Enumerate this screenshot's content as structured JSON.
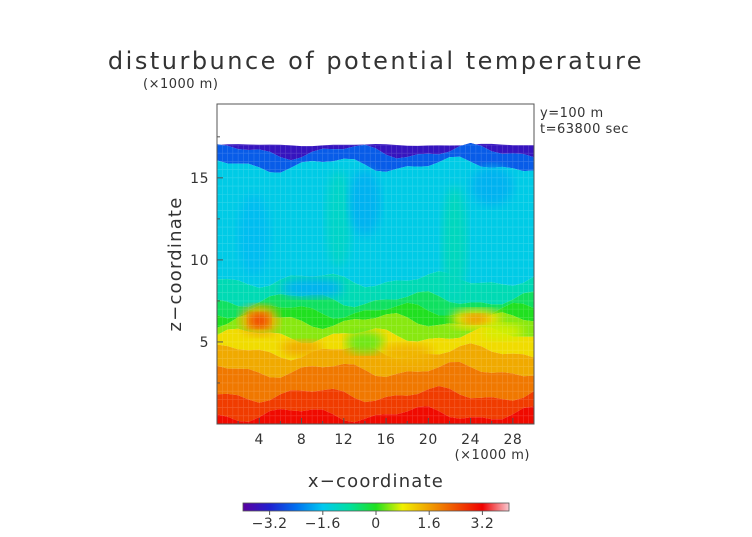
{
  "chart_data": {
    "type": "heatmap",
    "title": "disturbunce of potential temperature",
    "y_unit_label": "(×1000 m)",
    "x_unit_label": "(×1000 m)",
    "xlabel": "x−coordinate",
    "ylabel": "z−coordinate",
    "info_lines": [
      "y=100  m",
      "t=63800  sec"
    ],
    "xlim": [
      0,
      30
    ],
    "ylim": [
      0,
      19.5
    ],
    "x_ticks": [
      {
        "value": 4,
        "label": "4"
      },
      {
        "value": 8,
        "label": "8"
      },
      {
        "value": 12,
        "label": "12"
      },
      {
        "value": 16,
        "label": "16"
      },
      {
        "value": 20,
        "label": "20"
      },
      {
        "value": 24,
        "label": "24"
      },
      {
        "value": 28,
        "label": "28"
      }
    ],
    "y_ticks": [
      {
        "value": 5,
        "label": "5"
      },
      {
        "value": 10,
        "label": "10"
      },
      {
        "value": 15,
        "label": "15"
      }
    ],
    "colorbar": {
      "range": [
        -4,
        4
      ],
      "ticks": [
        {
          "value": -3.2,
          "label": "−3.2"
        },
        {
          "value": -1.6,
          "label": "−1.6"
        },
        {
          "value": 0,
          "label": "0"
        },
        {
          "value": 1.6,
          "label": "1.6"
        },
        {
          "value": 3.2,
          "label": "3.2"
        }
      ],
      "colors": [
        "#5a00a0",
        "#2020d0",
        "#0070f0",
        "#00c8f0",
        "#00e0a0",
        "#20e020",
        "#f0f000",
        "#f0a000",
        "#f05000",
        "#f00000",
        "#f8c8d0"
      ]
    },
    "field_top": 17.0,
    "layers": [
      {
        "bottom": 16.6,
        "top": 17.0,
        "value": -3.5
      },
      {
        "bottom": 15.8,
        "top": 16.6,
        "value": -2.6
      },
      {
        "bottom": 8.8,
        "top": 15.8,
        "value": -1.5
      },
      {
        "bottom": 7.6,
        "top": 8.8,
        "value": -1.0
      },
      {
        "bottom": 6.9,
        "top": 7.6,
        "value": -0.4
      },
      {
        "bottom": 6.3,
        "top": 6.9,
        "value": 0.0
      },
      {
        "bottom": 5.4,
        "top": 6.3,
        "value": 0.4
      },
      {
        "bottom": 4.4,
        "top": 5.4,
        "value": 1.0
      },
      {
        "bottom": 3.3,
        "top": 4.4,
        "value": 1.5
      },
      {
        "bottom": 1.8,
        "top": 3.3,
        "value": 2.0
      },
      {
        "bottom": 0.6,
        "top": 1.8,
        "value": 2.6
      },
      {
        "bottom": 0.0,
        "top": 0.6,
        "value": 3.1
      }
    ],
    "blobs": [
      {
        "x": 4.0,
        "z": 6.3,
        "rx": 1.8,
        "rz": 0.9,
        "value": 1.5
      },
      {
        "x": 4.0,
        "z": 6.3,
        "rx": 1.0,
        "rz": 0.45,
        "value": 2.6
      },
      {
        "x": 24.5,
        "z": 6.4,
        "rx": 2.4,
        "rz": 0.6,
        "value": 1.0
      },
      {
        "x": 24.5,
        "z": 6.4,
        "rx": 1.2,
        "rz": 0.3,
        "value": 1.8
      },
      {
        "x": 3.5,
        "z": 11.5,
        "rx": 1.5,
        "rz": 2.5,
        "value": -1.7
      },
      {
        "x": 11.5,
        "z": 12.5,
        "rx": 1.2,
        "rz": 3.0,
        "value": -1.2
      },
      {
        "x": 14.0,
        "z": 13.5,
        "rx": 1.5,
        "rz": 2.0,
        "value": -1.8
      },
      {
        "x": 22.5,
        "z": 11.0,
        "rx": 1.2,
        "rz": 3.5,
        "value": -1.1
      },
      {
        "x": 26.0,
        "z": 14.5,
        "rx": 2.0,
        "rz": 1.2,
        "value": -1.8
      },
      {
        "x": 9.0,
        "z": 8.3,
        "rx": 3.0,
        "rz": 0.6,
        "value": -1.8
      },
      {
        "x": 14.0,
        "z": 5.0,
        "rx": 1.8,
        "rz": 0.7,
        "value": 0.3
      },
      {
        "x": 8.0,
        "z": 4.6,
        "rx": 2.0,
        "rz": 0.5,
        "value": 1.5
      },
      {
        "x": 18.0,
        "z": 4.3,
        "rx": 2.5,
        "rz": 0.6,
        "value": 1.4
      },
      {
        "x": 27.0,
        "z": 5.6,
        "rx": 2.0,
        "rz": 0.5,
        "value": 0.7
      }
    ]
  }
}
